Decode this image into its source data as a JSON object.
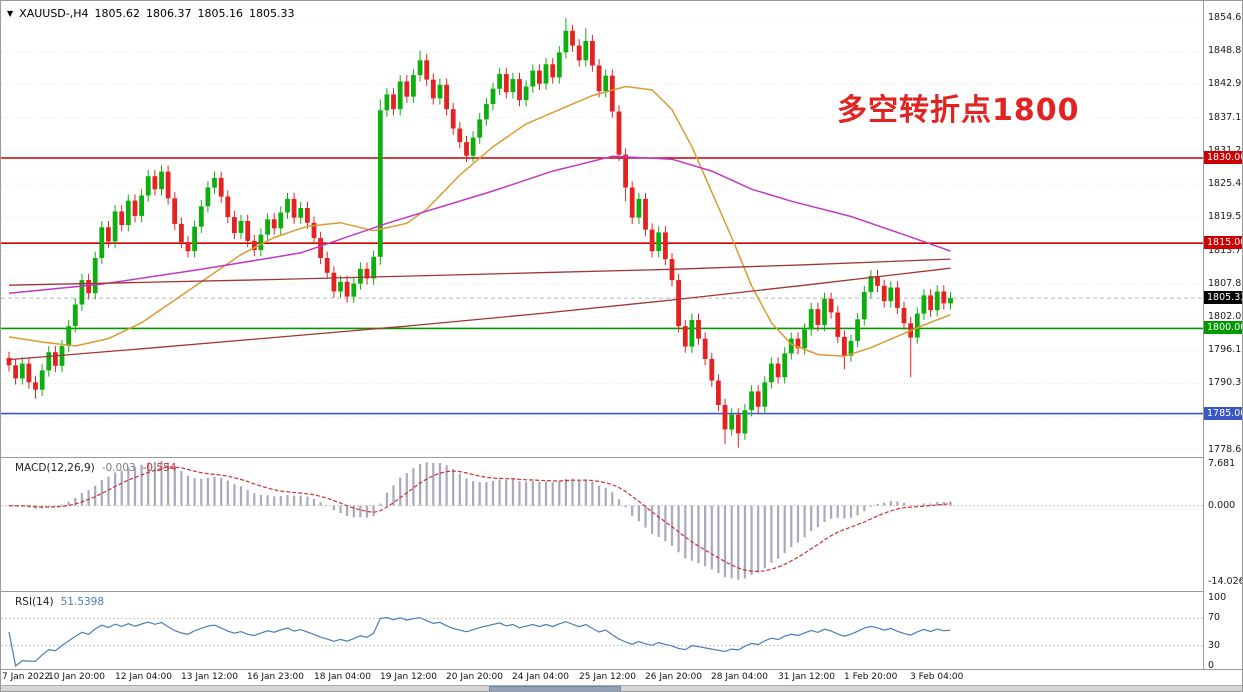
{
  "window": {
    "title": {
      "symbol_period": "XAUUSD-,H4",
      "open": "1805.62",
      "high": "1806.37",
      "low": "1805.16",
      "close": "1805.33"
    }
  },
  "icons": {
    "collapse_triangle": "▼"
  },
  "annotation": {
    "text": "多空转折点1800",
    "color": "#e32222"
  },
  "macd_label": {
    "name": "MACD(12,26,9)",
    "value_main": "-0.003",
    "value_signal": "-0.554"
  },
  "rsi_label": {
    "name": "RSI(14)",
    "value": "51.5398"
  },
  "chart_data": {
    "type": "candlestick+indicators",
    "symbol": "XAUUSD-",
    "timeframe": "H4",
    "main": {
      "ylim": [
        1777.35,
        1857.65
      ],
      "yticks": [
        1854.65,
        1848.8,
        1842.95,
        1837.1,
        1831.25,
        1825.4,
        1819.55,
        1813.7,
        1807.85,
        1802.0,
        1796.15,
        1790.3,
        1784.45,
        1778.6
      ],
      "x0": 8,
      "bar_spacing": 6.63,
      "grid_color": "#e8e8e8",
      "candles": {
        "up_color": "#0fae0f",
        "down_color": "#e42222",
        "first_open": 1794.8,
        "default_wick": 1.1,
        "closes": [
          1793.5,
          1791.2,
          1793.8,
          1790.5,
          1789.2,
          1792.6,
          1795.8,
          1793.4,
          1796.9,
          1800.4,
          1804.2,
          1808.5,
          1806.2,
          1812.4,
          1817.8,
          1815.3,
          1820.6,
          1818.2,
          1822.5,
          1819.8,
          1823.4,
          1826.8,
          1824.5,
          1827.6,
          1822.9,
          1818.4,
          1815.2,
          1813.6,
          1817.9,
          1821.5,
          1824.8,
          1826.5,
          1823.2,
          1819.6,
          1816.8,
          1818.9,
          1815.4,
          1813.8,
          1816.5,
          1819.2,
          1817.6,
          1820.4,
          1822.8,
          1819.5,
          1821.2,
          1818.6,
          1815.9,
          1812.4,
          1809.8,
          1806.5,
          1808.2,
          1805.6,
          1807.9,
          1810.5,
          1808.8,
          1812.6,
          1838.4,
          1841.2,
          1838.6,
          1843.5,
          1840.8,
          1844.6,
          1847.2,
          1843.8,
          1840.5,
          1842.9,
          1838.6,
          1835.2,
          1832.8,
          1830.4,
          1833.6,
          1836.8,
          1839.5,
          1842.2,
          1844.8,
          1841.6,
          1843.9,
          1840.2,
          1842.6,
          1845.4,
          1843.1,
          1846.5,
          1844.2,
          1848.6,
          1852.4,
          1849.8,
          1847.2,
          1850.6,
          1846.3,
          1841.8,
          1844.5,
          1838.2,
          1830.6,
          1824.8,
          1819.5,
          1822.8,
          1817.4,
          1813.6,
          1816.9,
          1812.2,
          1808.5,
          1800.4,
          1796.8,
          1801.5,
          1798.2,
          1794.6,
          1790.8,
          1786.5,
          1782.2,
          1784.8,
          1781.5,
          1785.6,
          1788.9,
          1786.2,
          1790.5,
          1793.8,
          1791.4,
          1795.6,
          1798.2,
          1796.5,
          1799.8,
          1803.4,
          1800.6,
          1805.2,
          1802.8,
          1798.5,
          1795.2,
          1797.8,
          1801.6,
          1806.4,
          1809.2,
          1807.5,
          1804.8,
          1807.2,
          1803.6,
          1800.9,
          1798.4,
          1802.6,
          1805.8,
          1803.2,
          1806.5,
          1804.4,
          1805.33
        ],
        "wick_overrides": {
          "4": {
            "l": 1787.6
          },
          "56": {
            "h": 1840.3,
            "l": 1811.2
          },
          "62": {
            "h": 1848.9
          },
          "84": {
            "h": 1854.6
          },
          "85": {
            "h": 1853.4
          },
          "87": {
            "h": 1852.9
          },
          "93": {
            "l": 1822.4
          },
          "108": {
            "l": 1779.6
          },
          "110": {
            "l": 1779.0
          },
          "126": {
            "l": 1792.8
          },
          "136": {
            "l": 1791.4
          }
        }
      },
      "hlines": [
        {
          "price": 1830.0,
          "label": "1830.00",
          "color": "#cc0000"
        },
        {
          "price": 1815.0,
          "label": "1815.00",
          "color": "#cc0000"
        },
        {
          "price": 1800.0,
          "label": "1800.00",
          "color": "#009900"
        },
        {
          "price": 1785.0,
          "label": "1785.00",
          "color": "#3a57c4"
        }
      ],
      "current_price": {
        "value": 1805.33,
        "label": "1805.33",
        "box_color": "#000000",
        "line_color": "#b8b8b8"
      },
      "mas": [
        {
          "name": "ma-fast-orange",
          "color": "#d89c32",
          "width": 1.5,
          "points": [
            [
              0,
              1798.5
            ],
            [
              5,
              1797.6
            ],
            [
              10,
              1796.9
            ],
            [
              15,
              1798.2
            ],
            [
              20,
              1801.0
            ],
            [
              25,
              1805.0
            ],
            [
              30,
              1809.0
            ],
            [
              35,
              1813.0
            ],
            [
              40,
              1816.0
            ],
            [
              45,
              1818.0
            ],
            [
              50,
              1818.6
            ],
            [
              55,
              1817.2
            ],
            [
              60,
              1818.5
            ],
            [
              63,
              1821.0
            ],
            [
              68,
              1827.0
            ],
            [
              73,
              1832.0
            ],
            [
              78,
              1836.0
            ],
            [
              83,
              1838.5
            ],
            [
              88,
              1841.0
            ],
            [
              93,
              1842.6
            ],
            [
              97,
              1842.0
            ],
            [
              100,
              1838.5
            ],
            [
              103,
              1832.0
            ],
            [
              106,
              1824.0
            ],
            [
              109,
              1816.0
            ],
            [
              112,
              1807.5
            ],
            [
              115,
              1801.0
            ],
            [
              118,
              1797.2
            ],
            [
              122,
              1795.4
            ],
            [
              126,
              1795.1
            ],
            [
              130,
              1796.6
            ],
            [
              134,
              1798.6
            ],
            [
              138,
              1800.6
            ],
            [
              142,
              1802.4
            ]
          ]
        },
        {
          "name": "ma-mid-magenta",
          "color": "#c238c2",
          "width": 1.5,
          "points": [
            [
              0,
              1806.2
            ],
            [
              14,
              1807.8
            ],
            [
              29,
              1810.4
            ],
            [
              44,
              1813.3
            ],
            [
              57,
              1818.5
            ],
            [
              73,
              1824.2
            ],
            [
              82,
              1827.7
            ],
            [
              91,
              1830.3
            ],
            [
              100,
              1829.8
            ],
            [
              106,
              1827.7
            ],
            [
              112,
              1824.5
            ],
            [
              118,
              1822.4
            ],
            [
              127,
              1819.7
            ],
            [
              135,
              1816.5
            ],
            [
              142,
              1813.6
            ]
          ]
        },
        {
          "name": "ma-slow-flat-darkred",
          "color": "#a33434",
          "width": 1.3,
          "points": [
            [
              0,
              1807.6
            ],
            [
              20,
              1808.1
            ],
            [
              40,
              1808.6
            ],
            [
              60,
              1809.2
            ],
            [
              80,
              1809.8
            ],
            [
              100,
              1810.4
            ],
            [
              120,
              1811.2
            ],
            [
              142,
              1812.2
            ]
          ]
        },
        {
          "name": "ma-slow-rising-darkred",
          "color": "#a33434",
          "width": 1.3,
          "points": [
            [
              0,
              1794.5
            ],
            [
              20,
              1796.4
            ],
            [
              40,
              1798.4
            ],
            [
              60,
              1800.4
            ],
            [
              80,
              1802.6
            ],
            [
              100,
              1805.0
            ],
            [
              120,
              1807.6
            ],
            [
              142,
              1810.6
            ]
          ]
        }
      ]
    },
    "macd": {
      "params": [
        12,
        26,
        9
      ],
      "ylim": [
        -15.6,
        8.7
      ],
      "yticks": [
        7.681,
        0.0,
        -14.026
      ],
      "hist_color": "#a9a9bd",
      "signal_color": "#c83232",
      "current_main": -0.003,
      "current_signal": -0.554
    },
    "rsi": {
      "period": 14,
      "ylim": [
        0,
        100
      ],
      "yticks": [
        100,
        70,
        30,
        0
      ],
      "levels": [
        70,
        30
      ],
      "color": "#4a7ebb",
      "current": 51.5398
    },
    "time_axis": {
      "bars_per_label": 10,
      "labels": [
        "7 Jan 2022",
        "10 Jan 20:00",
        "12 Jan 04:00",
        "13 Jan 12:00",
        "16 Jan 23:00",
        "18 Jan 04:00",
        "19 Jan 12:00",
        "20 Jan 20:00",
        "24 Jan 04:00",
        "25 Jan 12:00",
        "26 Jan 20:00",
        "28 Jan 04:00",
        "31 Jan 12:00",
        "1 Feb 20:00",
        "3 Feb 04:00"
      ]
    }
  }
}
